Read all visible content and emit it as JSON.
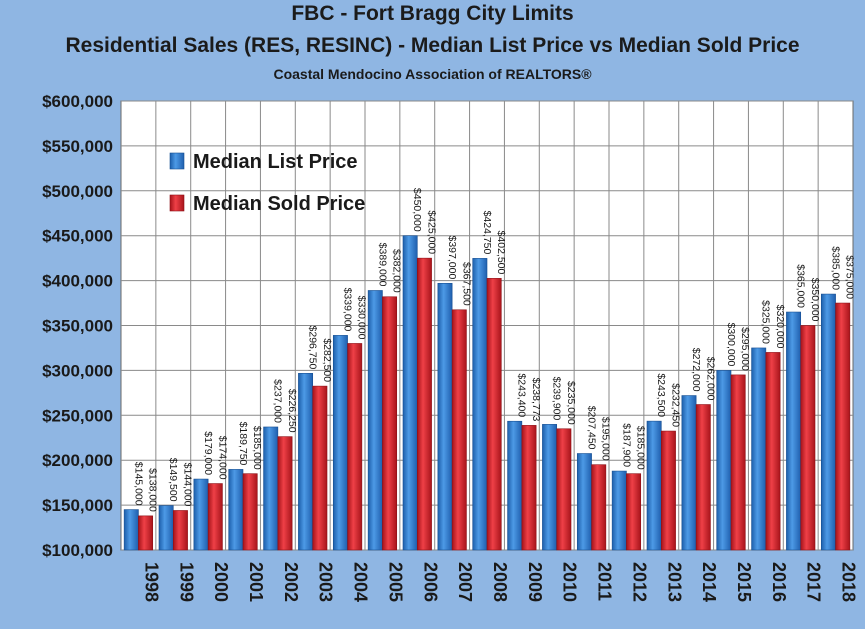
{
  "chart_data": {
    "type": "bar",
    "title": "FBC - Fort Bragg City Limits",
    "subtitle": "Residential Sales (RES, RESINC) - Median List Price vs Median Sold Price",
    "source": "Coastal Mendocino Association of REALTORS®",
    "xlabel": "",
    "ylabel": "",
    "ylim": [
      100000,
      600000
    ],
    "y_ticks": [
      {
        "value": 100000,
        "label": "$100,000"
      },
      {
        "value": 150000,
        "label": "$150,000"
      },
      {
        "value": 200000,
        "label": "$200,000"
      },
      {
        "value": 250000,
        "label": "$250,000"
      },
      {
        "value": 300000,
        "label": "$300,000"
      },
      {
        "value": 350000,
        "label": "$350,000"
      },
      {
        "value": 400000,
        "label": "$400,000"
      },
      {
        "value": 450000,
        "label": "$450,000"
      },
      {
        "value": 500000,
        "label": "$500,000"
      },
      {
        "value": 550000,
        "label": "$550,000"
      },
      {
        "value": 600000,
        "label": "$600,000"
      }
    ],
    "grid": true,
    "legend_position": "upper-left",
    "categories": [
      "1998",
      "1999",
      "2000",
      "2001",
      "2002",
      "2003",
      "2004",
      "2005",
      "2006",
      "2007",
      "2008",
      "2009",
      "2010",
      "2011",
      "2012",
      "2013",
      "2014",
      "2015",
      "2016",
      "2017",
      "2018"
    ],
    "series": [
      {
        "name": "Median List Price",
        "color": "#2e7dd1",
        "values": [
          145000,
          149500,
          179000,
          189750,
          237000,
          296750,
          339000,
          389000,
          450000,
          397000,
          424750,
          243400,
          239900,
          207450,
          187900,
          243500,
          272000,
          300000,
          325000,
          365000,
          385000
        ],
        "labels": [
          "$145,000",
          "$149,500",
          "$179,000",
          "$189,750",
          "$237,000",
          "$296,750",
          "$339,000",
          "$389,000",
          "$450,000",
          "$397,000",
          "$424,750",
          "$243,400",
          "$239,900",
          "$207,450",
          "$187,900",
          "$243,500",
          "$272,000",
          "$300,000",
          "$325,000",
          "$365,000",
          "$385,000"
        ]
      },
      {
        "name": "Median Sold Price",
        "color": "#d8242b",
        "values": [
          138000,
          144000,
          174000,
          185000,
          226250,
          282500,
          330000,
          382000,
          425000,
          367500,
          402500,
          238773,
          235000,
          195000,
          185000,
          232450,
          262000,
          295000,
          320000,
          350000,
          375000
        ],
        "labels": [
          "$138,000",
          "$144,000",
          "$174,000",
          "$185,000",
          "$226,250",
          "$282,500",
          "$330,000",
          "$382,000",
          "$425,000",
          "$367,500",
          "$402,500",
          "$238,773",
          "$235,000",
          "$195,000",
          "$185,000",
          "$232,450",
          "$262,000",
          "$295,000",
          "$320,000",
          "$350,000",
          "$375,000"
        ]
      }
    ]
  }
}
